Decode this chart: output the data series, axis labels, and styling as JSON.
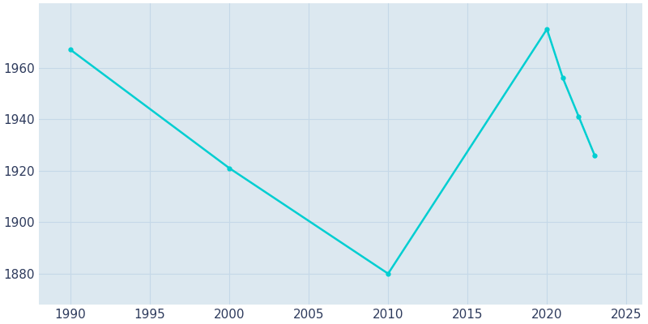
{
  "years": [
    1990,
    2000,
    2010,
    2020,
    2021,
    2022,
    2023
  ],
  "population": [
    1967,
    1921,
    1880,
    1975,
    1956,
    1941,
    1926
  ],
  "line_color": "#00CED1",
  "marker_color": "#00CED1",
  "figure_background_color": "#ffffff",
  "axes_background_color": "#dce8f0",
  "grid_color": "#c5d8e8",
  "xlim": [
    1988,
    2026
  ],
  "ylim": [
    1868,
    1985
  ],
  "xticks": [
    1990,
    1995,
    2000,
    2005,
    2010,
    2015,
    2020,
    2025
  ],
  "yticks": [
    1880,
    1900,
    1920,
    1940,
    1960
  ],
  "tick_label_color": "#2d3a5c",
  "tick_fontsize": 11,
  "line_width": 1.8,
  "marker_size": 3.5
}
